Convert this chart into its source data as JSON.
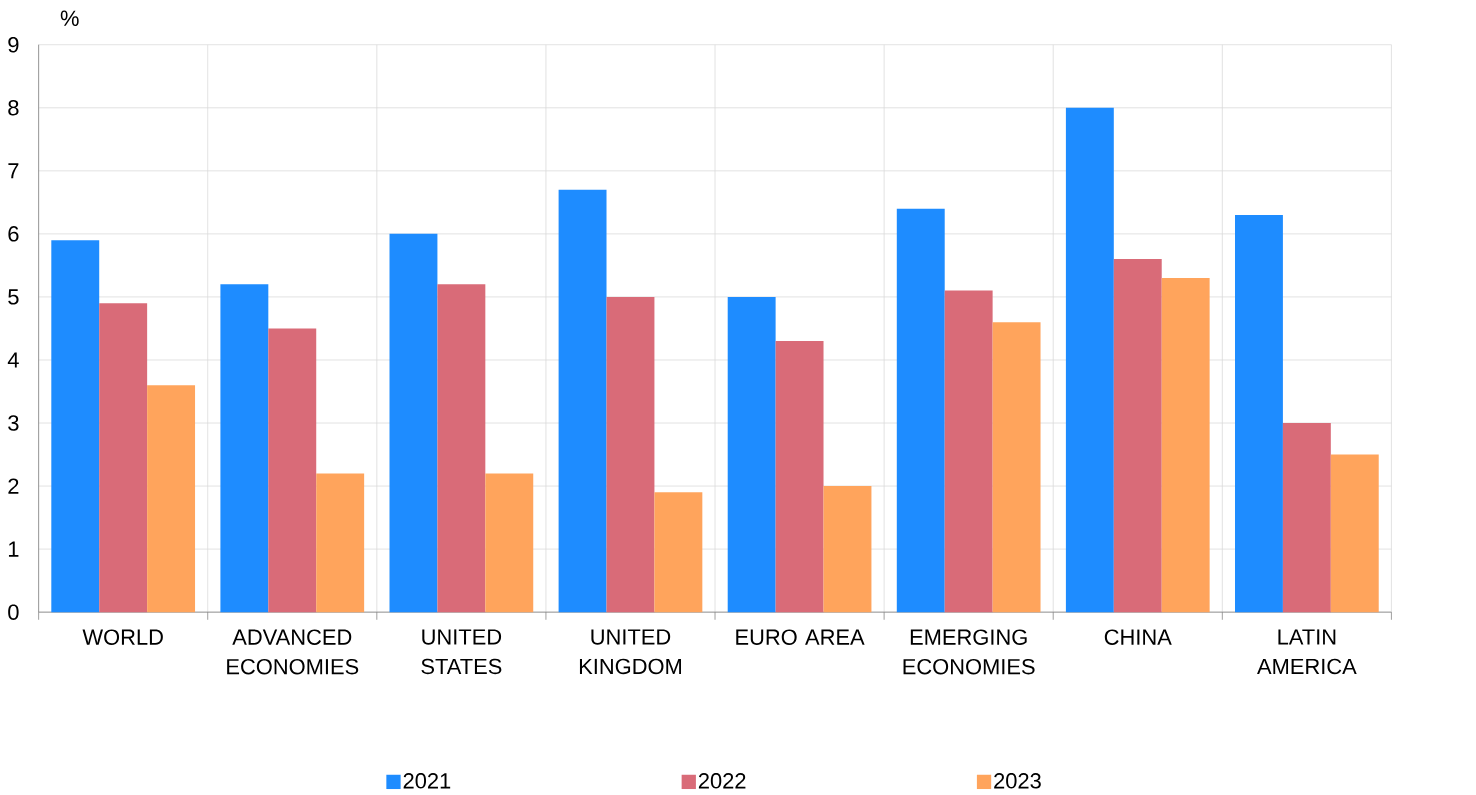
{
  "chart_data": {
    "type": "bar",
    "ylabel": "%",
    "categories": [
      "WORLD",
      "ADVANCED ECONOMIES",
      "UNITED STATES",
      "UNITED KINGDOM",
      "EURO AREA",
      "EMERGING ECONOMIES",
      "CHINA",
      "LATIN AMERICA"
    ],
    "series": [
      {
        "name": "2021",
        "color": "#1e8cff",
        "values": [
          5.9,
          5.2,
          6.0,
          6.7,
          5.0,
          6.4,
          8.0,
          6.3
        ]
      },
      {
        "name": "2022",
        "color": "#d96b78",
        "values": [
          4.9,
          4.5,
          5.2,
          5.0,
          4.3,
          5.1,
          5.6,
          3.0
        ]
      },
      {
        "name": "2023",
        "color": "#ffa45c",
        "values": [
          3.6,
          2.2,
          2.2,
          1.9,
          2.0,
          4.6,
          5.3,
          2.5
        ]
      }
    ],
    "ylim": [
      0,
      9
    ],
    "yticks": [
      0,
      1,
      2,
      3,
      4,
      5,
      6,
      7,
      8,
      9
    ],
    "grid": true,
    "legend": "bottom"
  }
}
